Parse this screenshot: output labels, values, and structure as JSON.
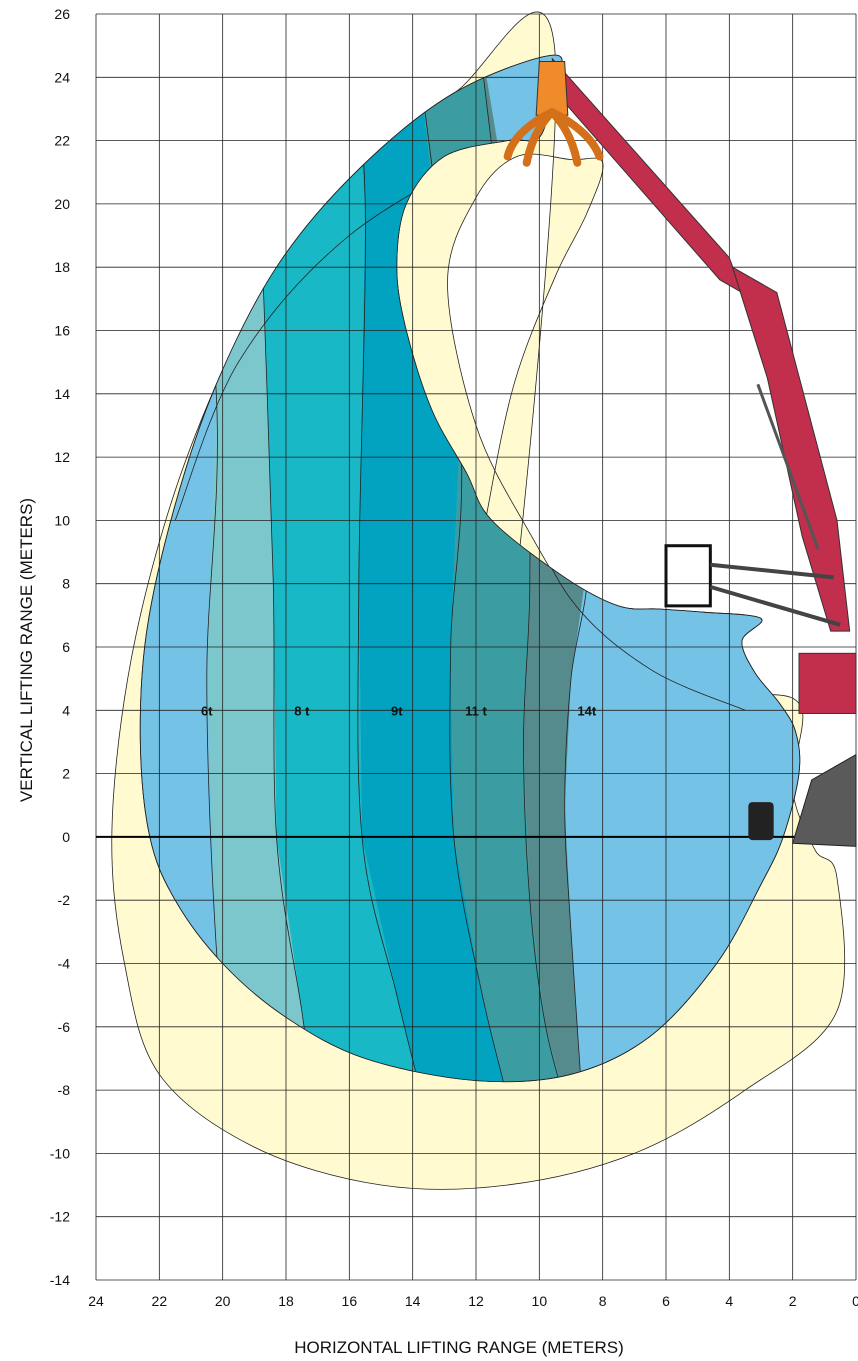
{
  "chart_data": {
    "type": "area",
    "title": "",
    "xlabel": "HORIZONTAL LIFTING RANGE (METERS)",
    "ylabel": "VERTICAL LIFTING RANGE (METERS)",
    "xlim": [
      24,
      0
    ],
    "ylim": [
      -14,
      26
    ],
    "x_reversed": true,
    "grid": true,
    "x_ticks": [
      24,
      22,
      20,
      18,
      16,
      14,
      12,
      10,
      8,
      6,
      4,
      2,
      0
    ],
    "y_ticks": [
      26,
      24,
      22,
      20,
      18,
      16,
      14,
      12,
      10,
      8,
      6,
      4,
      2,
      0,
      -2,
      -4,
      -6,
      -8,
      -10,
      -12,
      -14
    ],
    "load_zones": [
      {
        "label": "6t",
        "label_position": [
          20.5,
          4
        ],
        "color": "#7bc7cc"
      },
      {
        "label": "8 t",
        "label_position": [
          17.5,
          4
        ],
        "color": "#19b8c6"
      },
      {
        "label": "9t",
        "label_position": [
          14.5,
          4
        ],
        "color": "#02a2c1"
      },
      {
        "label": "11 t",
        "label_position": [
          12.0,
          4
        ],
        "color": "#3b9da1"
      },
      {
        "label": "14t",
        "label_position": [
          8.5,
          4
        ],
        "color": "#568b8d"
      }
    ],
    "areas": [
      {
        "name": "envelope",
        "color": "#fffad0",
        "points": [
          [
            9.5,
            24.7
          ],
          [
            12.7,
            23.5
          ],
          [
            15.8,
            21
          ],
          [
            18.3,
            18
          ],
          [
            20.2,
            14.3
          ],
          [
            21.8,
            10
          ],
          [
            23,
            5
          ],
          [
            23.5,
            0
          ],
          [
            23.1,
            -4
          ],
          [
            22,
            -7.5
          ],
          [
            19,
            -9.8
          ],
          [
            15,
            -11
          ],
          [
            11,
            -11
          ],
          [
            7,
            -10
          ],
          [
            3.5,
            -8
          ],
          [
            0.6,
            -5.5
          ],
          [
            0.6,
            -1.3
          ],
          [
            1.3,
            -0.4
          ],
          [
            2,
            1.5
          ],
          [
            1.7,
            4
          ],
          [
            2.8,
            4.5
          ],
          [
            4.5,
            4.1
          ],
          [
            6.5,
            5.3
          ],
          [
            8.5,
            6.8
          ],
          [
            10.3,
            9.6
          ],
          [
            12,
            13
          ],
          [
            12.9,
            17.5
          ],
          [
            12,
            20.2
          ],
          [
            10.7,
            21.5
          ],
          [
            9,
            21.4
          ],
          [
            8,
            21.3
          ],
          [
            8.5,
            19.7
          ],
          [
            9.5,
            17.7
          ],
          [
            10.8,
            14.3
          ],
          [
            11.7,
            10
          ],
          [
            12.2,
            7
          ],
          [
            12,
            5
          ],
          [
            11.3,
            3
          ]
        ]
      },
      {
        "name": "reach-zone",
        "color": "#74c2e6",
        "points": [
          [
            9.5,
            24.7
          ],
          [
            12.7,
            23.5
          ],
          [
            15.8,
            21
          ],
          [
            18.3,
            18
          ],
          [
            20.2,
            14.3
          ],
          [
            21.5,
            10.5
          ],
          [
            22.4,
            6.5
          ],
          [
            22.6,
            3
          ],
          [
            22.3,
            0
          ],
          [
            21.5,
            -2
          ],
          [
            20,
            -4
          ],
          [
            18,
            -5.7
          ],
          [
            15.5,
            -7
          ],
          [
            12,
            -7.7
          ],
          [
            9,
            -7.5
          ],
          [
            6.5,
            -6.3
          ],
          [
            4.4,
            -4
          ],
          [
            3,
            -1.5
          ],
          [
            2.3,
            0
          ],
          [
            1.8,
            2
          ],
          [
            1.9,
            3.3
          ],
          [
            2.4,
            4.2
          ],
          [
            3.2,
            5.2
          ],
          [
            3.6,
            6.2
          ],
          [
            3.0,
            6.9
          ],
          [
            4.8,
            7.1
          ],
          [
            6.2,
            7.2
          ],
          [
            7.5,
            7.3
          ],
          [
            9.2,
            8.2
          ],
          [
            11.5,
            10.0
          ],
          [
            12.3,
            11.5
          ],
          [
            13.4,
            13.5
          ],
          [
            14.2,
            16.0
          ],
          [
            14.5,
            18.0
          ],
          [
            14.2,
            20.0
          ],
          [
            13.0,
            21.5
          ],
          [
            11.0,
            22.0
          ],
          [
            10.0,
            22.1
          ],
          [
            9.6,
            23.5
          ]
        ]
      }
    ]
  }
}
